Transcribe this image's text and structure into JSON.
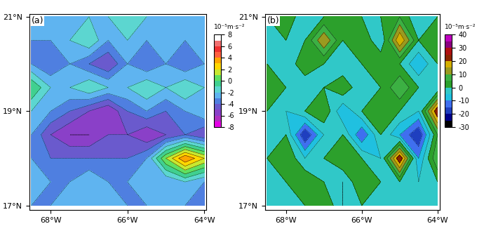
{
  "chart_data": [
    {
      "type": "contour",
      "title": "(a)",
      "x": [
        -68.5,
        -68.0,
        -67.5,
        -67.0,
        -66.5,
        -66.0,
        -65.5,
        -65.0,
        -64.5,
        -64.0
      ],
      "y": [
        17.0,
        17.5,
        18.0,
        18.5,
        19.0,
        19.5,
        20.0,
        20.5,
        21.0
      ],
      "z": [
        [
          -3,
          -3,
          -2,
          -3,
          -2,
          -3,
          -3,
          -2,
          -3,
          -3
        ],
        [
          -2,
          -3,
          -3,
          -2,
          -3,
          -3,
          -2,
          -3,
          -2,
          -3
        ],
        [
          -3,
          -4,
          -4,
          -4,
          -4,
          -4,
          -3,
          1,
          4,
          2
        ],
        [
          -3,
          -5,
          -6,
          -6,
          -5,
          -5,
          -6,
          -5,
          -4,
          -5
        ],
        [
          -2,
          -3,
          -4,
          -5,
          -6,
          -4,
          -3,
          -4,
          -3,
          -2
        ],
        [
          0,
          -2,
          -2,
          -1,
          -2,
          -2,
          -1,
          -2,
          -1,
          -2
        ],
        [
          -3,
          -4,
          -3,
          -4,
          -5,
          -3,
          -4,
          -3,
          -4,
          -3
        ],
        [
          -3,
          -3,
          -2,
          -1,
          -3,
          -2,
          -3,
          -2,
          -3,
          -2
        ],
        [
          -2,
          -2,
          -3,
          -2,
          -2,
          -1,
          -2,
          -3,
          -2,
          -2
        ]
      ],
      "levels": [
        -8,
        -7,
        -6,
        -5,
        -4,
        -3,
        -2,
        -1,
        0,
        1,
        2,
        3,
        4,
        5,
        6,
        7,
        8
      ],
      "colors": [
        "#e600e6",
        "#b030c0",
        "#8a40c8",
        "#6a5acd",
        "#4f7fe0",
        "#5fb4f0",
        "#5cd6d0",
        "#40d090",
        "#60e060",
        "#c8e830",
        "#ffd700",
        "#ffa500",
        "#ff6040",
        "#f03030",
        "#f07070",
        "#ffffff"
      ],
      "xlim": [
        -68.55,
        -63.95
      ],
      "ylim": [
        16.9,
        21.06
      ],
      "xticks": [
        {
          "value": -68,
          "label": "68°W"
        },
        {
          "value": -66,
          "label": "66°W"
        },
        {
          "value": -64,
          "label": "64°W"
        }
      ],
      "yticks": [
        {
          "value": 17,
          "label": "17°N"
        },
        {
          "value": 19,
          "label": "19°N"
        },
        {
          "value": 21,
          "label": "21°N"
        }
      ],
      "colorbar": {
        "label": "10⁻⁵m·s⁻²",
        "range": [
          -8,
          8
        ],
        "ticks": [
          -8,
          -6,
          -4,
          -2,
          0,
          2,
          4,
          6,
          8
        ]
      }
    },
    {
      "type": "contour",
      "title": "(b)",
      "x": [
        -68.5,
        -68.0,
        -67.5,
        -67.0,
        -66.5,
        -66.0,
        -65.5,
        -65.0,
        -64.5,
        -64.0
      ],
      "y": [
        17.0,
        17.5,
        18.0,
        18.5,
        19.0,
        19.5,
        20.0,
        20.5,
        21.0
      ],
      "z": [
        [
          0,
          -5,
          0,
          5,
          -5,
          0,
          0,
          -5,
          0,
          0
        ],
        [
          -5,
          0,
          5,
          0,
          -5,
          5,
          0,
          0,
          -5,
          0
        ],
        [
          0,
          5,
          -5,
          0,
          5,
          0,
          -5,
          25,
          -10,
          10
        ],
        [
          -5,
          0,
          -20,
          -5,
          0,
          -15,
          0,
          -10,
          -20,
          5
        ],
        [
          0,
          -5,
          0,
          5,
          -10,
          0,
          5,
          0,
          -5,
          25
        ],
        [
          5,
          0,
          -5,
          0,
          5,
          -5,
          0,
          10,
          0,
          -5
        ],
        [
          0,
          -5,
          5,
          0,
          -5,
          0,
          5,
          0,
          -10,
          0
        ],
        [
          -5,
          0,
          0,
          15,
          0,
          5,
          -5,
          20,
          0,
          5
        ],
        [
          0,
          5,
          -5,
          0,
          5,
          0,
          0,
          5,
          -5,
          0
        ]
      ],
      "levels": [
        -30,
        -25,
        -20,
        -15,
        -10,
        -5,
        0,
        5,
        10,
        15,
        20,
        25,
        30,
        35,
        40
      ],
      "colors": [
        "#000000",
        "#00008b",
        "#1f3fbf",
        "#3f6fef",
        "#20c0e0",
        "#30c8c8",
        "#2ca02c",
        "#3cb043",
        "#9a9a20",
        "#d4b000",
        "#8b2500",
        "#b01010",
        "#8b0080",
        "#c000c0"
      ],
      "xlim": [
        -68.55,
        -63.95
      ],
      "ylim": [
        16.9,
        21.06
      ],
      "xticks": [
        {
          "value": -68,
          "label": "68°W"
        },
        {
          "value": -66,
          "label": "66°W"
        },
        {
          "value": -64,
          "label": "64°W"
        }
      ],
      "yticks": [
        {
          "value": 17,
          "label": "17°N"
        },
        {
          "value": 19,
          "label": "19°N"
        },
        {
          "value": 21,
          "label": "21°N"
        }
      ],
      "colorbar": {
        "label": "10⁻⁵m·s⁻²",
        "range": [
          -30,
          40
        ],
        "ticks": [
          -30,
          -20,
          -10,
          0,
          10,
          20,
          30,
          40
        ]
      }
    }
  ]
}
